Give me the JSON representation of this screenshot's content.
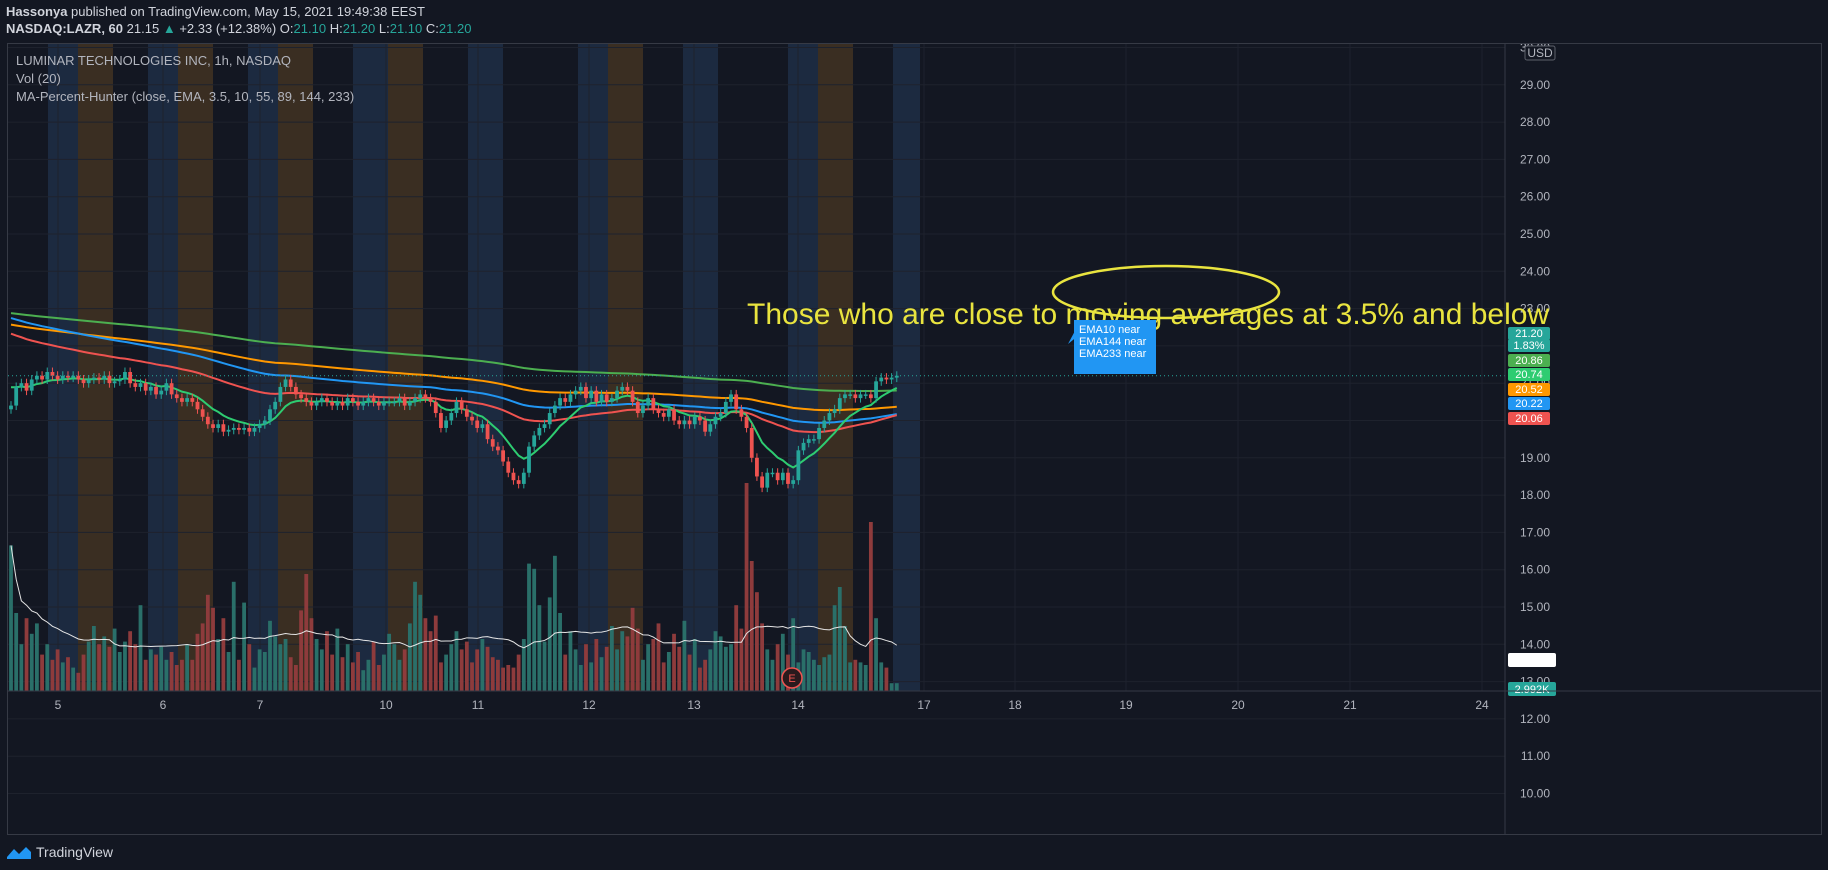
{
  "header": {
    "author": "Hassonya",
    "published_text": "published on TradingView.com, May 15, 2021 19:49:38 EEST",
    "symbol": "NASDAQ:LAZR, 60",
    "last": "21.15",
    "change": "+2.33 (+12.38%)",
    "o_label": "O:",
    "o_value": "21.10",
    "h_label": "H:",
    "h_value": "21.20",
    "l_label": "L:",
    "l_value": "21.10",
    "c_label": "C:",
    "c_value": "21.20"
  },
  "legend": {
    "title": "LUMINAR TECHNOLOGIES INC, 1h, NASDAQ",
    "volume": "Vol (20)",
    "indicator": "MA-Percent-Hunter (close, EMA, 3.5, 10, 55, 89, 144, 233)"
  },
  "annotation": "Those who are close to moving averages at 3.5% and below",
  "callout": [
    "EMA10 near",
    "EMA144 near",
    "EMA233 near"
  ],
  "currency": "USD",
  "footer": {
    "brand": "TradingView"
  },
  "colors": {
    "background": "#131722",
    "up": "#26a69a",
    "down": "#ef5350",
    "ema10": "#2ecc71",
    "ema55": "#ef5350",
    "ema89": "#2196f3",
    "ema144": "#ff9800",
    "ema233": "#4caf50",
    "annotation": "#e9e43f",
    "callout": "#2196f3",
    "band_orange": "#3a2e22",
    "band_blue": "#1c2a40"
  },
  "chart_data": {
    "type": "candlestick",
    "y_ticks": [
      "30.00",
      "29.00",
      "28.00",
      "27.00",
      "26.00",
      "25.00",
      "24.00",
      "23.00",
      "22.00",
      "21.00",
      "20.00",
      "19.00",
      "18.00",
      "17.00",
      "16.00",
      "15.00",
      "14.00",
      "13.00",
      "12.00",
      "11.00",
      "10.00"
    ],
    "ylim": [
      10,
      30
    ],
    "x_ticks": [
      "5",
      "6",
      "7",
      "10",
      "11",
      "12",
      "13",
      "14",
      "17",
      "18",
      "19",
      "20",
      "21",
      "24"
    ],
    "closes": [
      20.4,
      20.9,
      21.0,
      20.8,
      21.1,
      21.2,
      21.1,
      21.3,
      21.2,
      21.1,
      21.2,
      21.15,
      21.2,
      21.1,
      21.0,
      21.1,
      21.15,
      21.1,
      21.2,
      21.0,
      21.05,
      21.1,
      21.3,
      21.0,
      20.9,
      21.0,
      20.8,
      20.9,
      20.7,
      20.8,
      21.0,
      20.7,
      20.6,
      20.5,
      20.6,
      20.5,
      20.3,
      20.1,
      19.9,
      19.8,
      19.9,
      19.7,
      19.75,
      19.8,
      19.75,
      19.8,
      19.7,
      19.8,
      19.9,
      20.0,
      20.3,
      20.5,
      20.9,
      21.1,
      20.9,
      20.7,
      20.6,
      20.5,
      20.4,
      20.5,
      20.6,
      20.5,
      20.4,
      20.5,
      20.4,
      20.6,
      20.5,
      20.4,
      20.5,
      20.6,
      20.5,
      20.4,
      20.5,
      20.5,
      20.5,
      20.6,
      20.4,
      20.5,
      20.6,
      20.7,
      20.6,
      20.5,
      20.2,
      19.8,
      20.0,
      20.2,
      20.5,
      20.3,
      20.1,
      20.0,
      19.8,
      19.9,
      19.5,
      19.3,
      19.2,
      18.9,
      18.6,
      18.4,
      18.3,
      18.6,
      19.3,
      19.6,
      19.8,
      19.9,
      20.2,
      20.4,
      20.6,
      20.5,
      20.7,
      20.8,
      20.9,
      20.6,
      20.8,
      20.5,
      20.7,
      20.5,
      20.6,
      20.8,
      20.9,
      20.8,
      20.5,
      20.2,
      20.4,
      20.6,
      20.3,
      20.2,
      20.1,
      20.3,
      20.0,
      19.9,
      20.0,
      19.9,
      20.1,
      20.0,
      19.7,
      19.9,
      20.1,
      20.2,
      20.5,
      20.7,
      20.3,
      20.1,
      19.8,
      19.0,
      18.5,
      18.2,
      18.6,
      18.6,
      18.4,
      18.6,
      18.3,
      18.4,
      19.2,
      19.4,
      19.5,
      19.5,
      19.8,
      20.0,
      20.2,
      20.3,
      20.6,
      20.7,
      20.7,
      20.6,
      20.7,
      20.7,
      20.6,
      21.05,
      21.15,
      21.1,
      21.15,
      21.2
    ],
    "volumes_k": [
      560,
      300,
      180,
      280,
      220,
      260,
      140,
      180,
      120,
      160,
      110,
      130,
      90,
      70,
      140,
      190,
      250,
      180,
      210,
      170,
      240,
      150,
      190,
      230,
      180,
      330,
      120,
      160,
      140,
      170,
      120,
      150,
      100,
      120,
      180,
      120,
      220,
      260,
      370,
      320,
      200,
      280,
      150,
      420,
      120,
      340,
      180,
      90,
      160,
      150,
      270,
      210,
      180,
      200,
      130,
      100,
      310,
      450,
      280,
      200,
      160,
      230,
      140,
      240,
      130,
      180,
      110,
      150,
      80,
      120,
      190,
      100,
      140,
      220,
      180,
      120,
      160,
      260,
      420,
      370,
      280,
      230,
      290,
      110,
      140,
      180,
      230,
      160,
      190,
      110,
      160,
      200,
      170,
      130,
      120,
      90,
      100,
      90,
      140,
      200,
      490,
      470,
      330,
      190,
      360,
      520,
      300,
      140,
      230,
      160,
      100,
      180,
      110,
      200,
      130,
      170,
      250,
      160,
      230,
      210,
      320,
      240,
      120,
      180,
      200,
      260,
      110,
      150,
      220,
      170,
      270,
      140,
      200,
      90,
      120,
      160,
      230,
      210,
      170,
      180,
      330,
      240,
      800,
      500,
      380,
      260,
      160,
      120,
      180,
      220,
      140,
      280,
      110,
      160,
      150,
      120,
      100,
      130,
      140,
      330,
      400,
      250,
      110,
      120,
      110,
      100,
      650,
      280,
      110,
      90,
      30,
      30
    ],
    "ema_last": {
      "ema10": 20.86,
      "ema55": 20.06,
      "ema89": 20.22,
      "ema144": 20.52,
      "ema233": 20.74
    },
    "price_tags": [
      {
        "label": "21.20",
        "color": "#26a69a"
      },
      {
        "label": "1.83%",
        "color": "#26a69a"
      },
      {
        "label": "20.86",
        "color": "#4caf50"
      },
      {
        "label": "20.74",
        "color": "#2ecc71"
      },
      {
        "label": "20.52",
        "color": "#ff9800"
      },
      {
        "label": "20.22",
        "color": "#2196f3"
      },
      {
        "label": "20.06",
        "color": "#ef5350"
      }
    ],
    "volume_tags": [
      {
        "label": "191.092K",
        "color": "#ffffff",
        "text_color": "#131722"
      },
      {
        "label": "2.992K",
        "color": "#26a69a",
        "text_color": "#ffffff"
      }
    ],
    "vol_sma_label": "E"
  }
}
